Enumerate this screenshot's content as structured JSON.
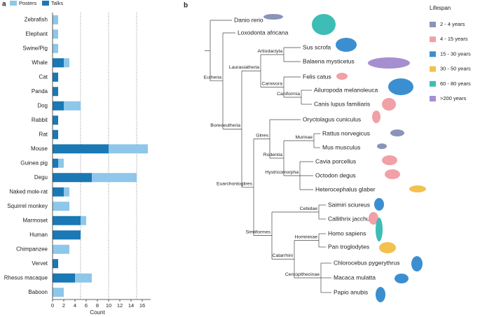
{
  "panel_labels": [
    "a",
    "b"
  ],
  "chart_data": {
    "type": "stacked-barh",
    "x_label": "Count",
    "categories": [
      "Zebrafish",
      "Elephant",
      "Swine/Pig",
      "Whale",
      "Cat",
      "Panda",
      "Dog",
      "Rabbit",
      "Rat",
      "Mouse",
      "Guinea pig",
      "Degu",
      "Naked mole-rat",
      "Squirrel monkey",
      "Marmoset",
      "Human",
      "Chimpanzee",
      "Vervet",
      "Rhesus macaque",
      "Baboon"
    ],
    "series": [
      {
        "name": "Posters",
        "color": "#8ec7ea",
        "values": [
          1,
          1,
          1,
          1,
          0,
          0,
          3,
          0,
          0,
          7,
          1,
          8,
          1,
          3,
          1,
          0,
          3,
          0,
          3,
          2
        ]
      },
      {
        "name": "Talks",
        "color": "#1a78b4",
        "values": [
          0,
          0,
          0,
          2,
          1,
          1,
          2,
          1,
          1,
          10,
          1,
          7,
          2,
          0,
          5,
          5,
          0,
          1,
          4,
          0
        ]
      }
    ],
    "xlim": [
      0,
      17.5
    ],
    "xticks": [
      0,
      2,
      4,
      6,
      8,
      10,
      12,
      14,
      16
    ],
    "reference_lines": [
      5,
      10,
      15
    ]
  },
  "tree": {
    "legend": {
      "title": "Lifespan",
      "items": [
        {
          "label": "2 - 4 years",
          "color": "#8a93b8"
        },
        {
          "label": "4 - 15 years",
          "color": "#f0a0a6"
        },
        {
          "label": "15 - 30 years",
          "color": "#3b8fd0"
        },
        {
          "label": "30 - 50 years",
          "color": "#f2c14e"
        },
        {
          "label": "60 - 80 years",
          "color": "#3dbdb6"
        },
        {
          "label": ">200 years",
          "color": "#a58fd0"
        }
      ]
    },
    "leaves": [
      "Danio rerio",
      "Loxodonta africana",
      "Sus scrofa",
      "Balaena mysticetus",
      "Felis catus",
      "Ailuropoda melanoleuca",
      "Canis lupus familiaris",
      "Oryctolagus cuniculus",
      "Rattus norvegicus",
      "Mus musculus",
      "Cavia porcellus",
      "Octodon degus",
      "Heterocephalus glaber",
      "Saimiri sciureus",
      "Callithrix jacchus",
      "Homo sapiens",
      "Pan troglodytes",
      "Chlorocebus pygerythrus",
      "Macaca mulatta",
      "Papio anubis"
    ],
    "clades": [
      "Eutheria",
      "Laurasiatheria",
      "Artiodactyla",
      "Carnivora",
      "Caniformia",
      "Boreoeutheria",
      "Glires",
      "Murinae",
      "Rodentia",
      "Hystricomorpha",
      "Euarchontoglires",
      "Cebidae",
      "Simiiformes",
      "Homininae",
      "Catarrhini",
      "Cercopithecinae"
    ]
  }
}
